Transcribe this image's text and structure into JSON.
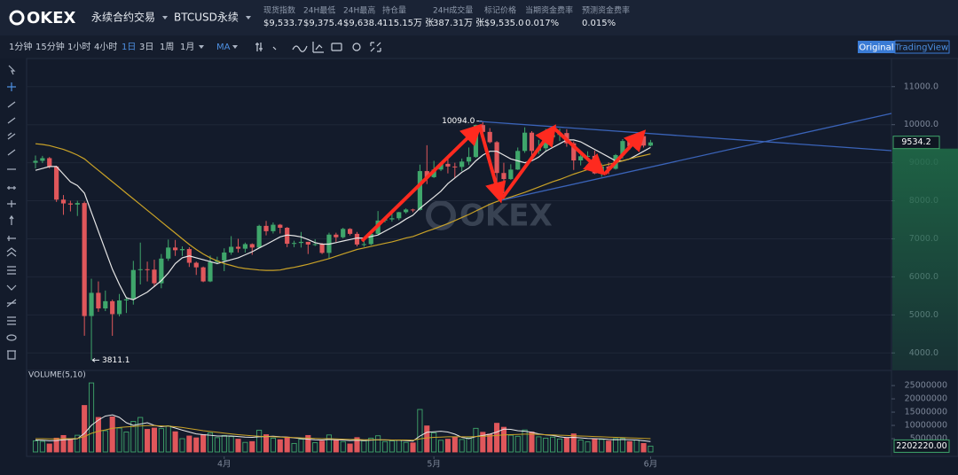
{
  "header": {
    "logo": "OKEX",
    "product": "永续合约交易",
    "instrument": "BTCUSD永续",
    "stats": [
      {
        "label": "现货指数",
        "value": "$9,533.7"
      },
      {
        "label": "24H最低",
        "value": "$9,375.4"
      },
      {
        "label": "24H最高",
        "value": "$9,638.4"
      },
      {
        "label": "持仓量",
        "value": "115.15万 张"
      },
      {
        "label": "24H成交量",
        "value": "387.31万 张"
      },
      {
        "label": "标记价格",
        "value": "$9,535.0"
      },
      {
        "label": "当期资金费率",
        "value": "0.017%"
      },
      {
        "label": "预测资金费率",
        "value": "0.015%"
      }
    ]
  },
  "toolbar": {
    "intervals": [
      "1分钟",
      "15分钟",
      "1小时",
      "4小时",
      "1日",
      "3日",
      "1周",
      "1月"
    ],
    "active_interval": 4,
    "indicator": "MA",
    "views": [
      "Original",
      "TradingView"
    ],
    "active_view": 0
  },
  "watermark": "OKEX",
  "chart_data": {
    "type": "candlestick",
    "categories": [
      null,
      null,
      null,
      null,
      null,
      null,
      null,
      null,
      null,
      null,
      null,
      null,
      null,
      null,
      null,
      null,
      null,
      null,
      null,
      null,
      null,
      null,
      null,
      null,
      null,
      null,
      null,
      "4月",
      null,
      null,
      null,
      null,
      null,
      null,
      null,
      null,
      null,
      null,
      null,
      null,
      null,
      null,
      null,
      null,
      null,
      null,
      null,
      null,
      null,
      null,
      null,
      null,
      null,
      null,
      null,
      null,
      null,
      "5月",
      null,
      null,
      null,
      null,
      null,
      null,
      null,
      null,
      null,
      null,
      null,
      null,
      null,
      null,
      null,
      null,
      null,
      null,
      null,
      null,
      null,
      null,
      null,
      null,
      null,
      null,
      null,
      null,
      null,
      null,
      "6月"
    ],
    "open": [
      9000,
      9050,
      9120,
      8900,
      8030,
      7930,
      7900,
      7940,
      4970,
      5580,
      5170,
      5360,
      5020,
      5380,
      5410,
      6180,
      6200,
      6190,
      5830,
      6480,
      6770,
      6700,
      6730,
      6370,
      6250,
      5880,
      6390,
      6430,
      6640,
      6790,
      6740,
      6860,
      6770,
      7340,
      7200,
      7370,
      7290,
      6870,
      6890,
      6920,
      6850,
      6860,
      6630,
      7110,
      7040,
      7260,
      7130,
      6850,
      6860,
      7130,
      7480,
      7510,
      7540,
      7700,
      7770,
      7760,
      8780,
      8620,
      8820,
      8970,
      8900,
      8890,
      9030,
      9150,
      9990,
      9810,
      9540,
      8730,
      8570,
      8820,
      9310,
      9790,
      9310,
      9380,
      9670,
      9730,
      9780,
      9510,
      9060,
      9170,
      9180,
      8720,
      8900,
      8840,
      9200,
      9570,
      9430,
      9700,
      9450
    ],
    "high": [
      9190,
      9180,
      9150,
      8920,
      8150,
      8000,
      8000,
      7980,
      5950,
      5880,
      5640,
      5400,
      5550,
      5470,
      6420,
      6900,
      6400,
      6450,
      6600,
      6980,
      6970,
      6800,
      6780,
      6400,
      6270,
      6560,
      6530,
      6750,
      7070,
      7000,
      6900,
      6880,
      7370,
      7470,
      7430,
      7390,
      7310,
      6950,
      7180,
      6920,
      6990,
      6890,
      7160,
      7160,
      7290,
      7280,
      7180,
      6940,
      7160,
      7730,
      7570,
      7710,
      7710,
      7800,
      7790,
      8950,
      9460,
      9050,
      9000,
      9190,
      9000,
      9110,
      9400,
      10000,
      10094,
      9910,
      9570,
      9000,
      8960,
      9400,
      9930,
      9830,
      9600,
      9890,
      9950,
      9900,
      9880,
      9560,
      9270,
      9300,
      9320,
      8980,
      9010,
      9230,
      9620,
      9610,
      9740,
      9710,
      9600
    ],
    "low": [
      8850,
      8990,
      8850,
      7970,
      7630,
      7720,
      7600,
      4450,
      3811.1,
      5080,
      5100,
      4450,
      4960,
      5050,
      5270,
      5800,
      5880,
      5730,
      5700,
      6420,
      6550,
      6550,
      6260,
      6050,
      5860,
      5860,
      6330,
      6150,
      6580,
      6640,
      6640,
      6580,
      6760,
      7090,
      7140,
      7140,
      6780,
      6780,
      6770,
      6600,
      6810,
      6600,
      6480,
      6920,
      7010,
      7090,
      6800,
      6790,
      6830,
      7110,
      7430,
      7450,
      7490,
      7660,
      7700,
      7740,
      8440,
      8600,
      8780,
      8720,
      8600,
      8780,
      8940,
      9130,
      9720,
      9510,
      8120,
      8200,
      8550,
      8810,
      9260,
      9150,
      9230,
      9280,
      9480,
      9570,
      9420,
      8810,
      8930,
      9080,
      8700,
      8630,
      8700,
      8820,
      9110,
      9340,
      9360,
      9400,
      9430
    ],
    "close": [
      9050,
      9120,
      8900,
      8030,
      7930,
      7900,
      7940,
      4970,
      5580,
      5170,
      5360,
      5020,
      5380,
      5410,
      6180,
      6200,
      6190,
      5830,
      6480,
      6770,
      6700,
      6730,
      6370,
      6250,
      5880,
      6390,
      6430,
      6640,
      6790,
      6740,
      6860,
      6770,
      7340,
      7200,
      7370,
      7290,
      6870,
      6890,
      6920,
      6850,
      6860,
      6630,
      7110,
      7040,
      7260,
      7130,
      6850,
      6860,
      7130,
      7480,
      7510,
      7540,
      7700,
      7770,
      7760,
      8780,
      8620,
      8820,
      8970,
      8900,
      8890,
      9030,
      9150,
      9990,
      9810,
      9540,
      8730,
      8570,
      8820,
      9310,
      9790,
      9310,
      9380,
      9670,
      9730,
      9780,
      9510,
      9060,
      9170,
      9180,
      8720,
      8900,
      8840,
      9200,
      9570,
      9430,
      9700,
      9450,
      9534.2
    ],
    "high_label": "10094.0",
    "up_color": "#3fa66b",
    "down_color": "#e0575b",
    "ma_lines": [
      {
        "color": "#e6e6e6",
        "values": [
          8800,
          8850,
          8900,
          8900,
          8700,
          8500,
          8400,
          8200,
          7700,
          7200,
          6700,
          6200,
          5800,
          5450,
          5400,
          5500,
          5600,
          5750,
          5900,
          6100,
          6350,
          6500,
          6550,
          6500,
          6450,
          6400,
          6350,
          6400,
          6450,
          6500,
          6580,
          6660,
          6760,
          6850,
          6950,
          7050,
          7100,
          7080,
          7050,
          6980,
          6900,
          6860,
          6860,
          6900,
          6940,
          6980,
          7020,
          7020,
          7060,
          7100,
          7200,
          7300,
          7400,
          7520,
          7620,
          7800,
          7950,
          8100,
          8250,
          8450,
          8600,
          8750,
          8860,
          9050,
          9200,
          9300,
          9300,
          9200,
          9100,
          9050,
          9000,
          9050,
          9150,
          9300,
          9400,
          9500,
          9600,
          9600,
          9550,
          9450,
          9350,
          9250,
          9150,
          9050,
          9050,
          9100,
          9200,
          9300,
          9400
        ]
      },
      {
        "color": "#c9a227",
        "values": [
          9500,
          9480,
          9450,
          9400,
          9350,
          9280,
          9200,
          9100,
          8950,
          8800,
          8650,
          8500,
          8350,
          8200,
          8050,
          7900,
          7750,
          7600,
          7450,
          7300,
          7150,
          7000,
          6850,
          6720,
          6600,
          6500,
          6420,
          6350,
          6300,
          6250,
          6220,
          6200,
          6180,
          6170,
          6170,
          6180,
          6220,
          6250,
          6290,
          6330,
          6380,
          6430,
          6480,
          6540,
          6600,
          6660,
          6720,
          6760,
          6800,
          6840,
          6880,
          6920,
          6970,
          7020,
          7060,
          7130,
          7200,
          7260,
          7330,
          7400,
          7480,
          7560,
          7640,
          7730,
          7820,
          7910,
          7980,
          8040,
          8100,
          8160,
          8220,
          8290,
          8360,
          8430,
          8500,
          8560,
          8630,
          8700,
          8760,
          8820,
          8870,
          8920,
          8960,
          9000,
          9050,
          9100,
          9150,
          9190,
          9230
        ]
      }
    ],
    "ylim": [
      3540,
      11740
    ],
    "yticks": [
      {
        "value": 4000,
        "label": "4000.0"
      },
      {
        "value": 5000,
        "label": "5000.0"
      },
      {
        "value": 6000,
        "label": "6000.0"
      },
      {
        "value": 7000,
        "label": "7000.0"
      },
      {
        "value": 8000,
        "label": "8000.0"
      },
      {
        "value": 9000,
        "label": "9000.0"
      },
      {
        "value": 10000,
        "label": "10000.0"
      },
      {
        "value": 11000,
        "label": "11000.0"
      }
    ],
    "grid": true,
    "volume": {
      "title": "VOLUME(5,10)",
      "values": [
        4200000,
        4000000,
        3000000,
        5200000,
        6200000,
        4800000,
        6300000,
        17500000,
        26000000,
        13000000,
        8000000,
        13200000,
        9000000,
        7500000,
        11500000,
        13000000,
        8500000,
        9000000,
        8800000,
        9800000,
        7600000,
        5000000,
        6000000,
        5300000,
        6500000,
        7200000,
        5400000,
        6200000,
        5800000,
        4800000,
        3600000,
        3900000,
        8200000,
        6500000,
        5200000,
        4600000,
        5600000,
        3200000,
        4800000,
        6200000,
        3500000,
        4100000,
        6400000,
        4300000,
        3900000,
        3000000,
        5400000,
        4200000,
        5200000,
        6100000,
        3900000,
        4200000,
        4500000,
        3600000,
        3400000,
        16000000,
        9800000,
        7200000,
        4400000,
        4800000,
        5600000,
        4700000,
        5300000,
        8900000,
        7400000,
        6700000,
        10800000,
        9300000,
        6300000,
        5900000,
        8300000,
        7500000,
        5700000,
        5200000,
        5600000,
        4900000,
        5400000,
        6800000,
        4500000,
        3800000,
        4700000,
        4700000,
        4100000,
        5000000,
        5100000,
        3900000,
        4500000,
        3200000,
        2202220
      ],
      "last_label": "2202220.00",
      "ma_lines": [
        {
          "color": "#e6e6e6",
          "values": [
            4500000,
            4400000,
            4200000,
            4300000,
            4600000,
            4700000,
            5000000,
            7000000,
            10000000,
            12000000,
            13500000,
            14000000,
            13000000,
            11000000,
            10000000,
            10500000,
            11000000,
            10000000,
            9500000,
            9800000,
            9000000,
            8200000,
            7500000,
            6800000,
            6500000,
            6300000,
            6000000,
            6000000,
            6000000,
            5800000,
            5600000,
            5500000,
            5700000,
            5800000,
            5900000,
            5700000,
            5600000,
            5300000,
            5000000,
            4800000,
            4600000,
            4500000,
            4700000,
            4600000,
            4500000,
            4300000,
            4400000,
            4300000,
            4400000,
            4600000,
            4500000,
            4400000,
            4400000,
            4300000,
            4100000,
            6000000,
            7400000,
            7600000,
            7800000,
            7500000,
            6700000,
            5500000,
            5000000,
            5800000,
            6200000,
            6700000,
            7500000,
            8600000,
            8500000,
            8000000,
            7800000,
            7400000,
            6800000,
            6400000,
            6200000,
            5700000,
            5400000,
            5500000,
            5300000,
            5100000,
            5000000,
            4900000,
            4700000,
            4600000,
            4700000,
            4600000,
            4500000,
            4200000,
            3900000
          ]
        },
        {
          "color": "#c9a227",
          "values": [
            5000000,
            5000000,
            4900000,
            4900000,
            5000000,
            5000000,
            5100000,
            5800000,
            7000000,
            7800000,
            8300000,
            8900000,
            9200000,
            9400000,
            9600000,
            9800000,
            9900000,
            9900000,
            9800000,
            9700000,
            9500000,
            9200000,
            8800000,
            8400000,
            8000000,
            7700000,
            7400000,
            7100000,
            6800000,
            6500000,
            6300000,
            6100000,
            5900000,
            5800000,
            5700000,
            5600000,
            5500000,
            5400000,
            5300000,
            5200000,
            5100000,
            5000000,
            5000000,
            4900000,
            4800000,
            4700000,
            4700000,
            4600000,
            4600000,
            4600000,
            4600000,
            4500000,
            4500000,
            4500000,
            4400000,
            4900000,
            5300000,
            5500000,
            5600000,
            5700000,
            5700000,
            5700000,
            5700000,
            5800000,
            5900000,
            6000000,
            6200000,
            6400000,
            6500000,
            6600000,
            6700000,
            6700000,
            6600000,
            6500000,
            6400000,
            6300000,
            6200000,
            6100000,
            6000000,
            5900000,
            5800000,
            5700000,
            5600000,
            5500000,
            5400000,
            5300000,
            5200000,
            5100000,
            5000000
          ]
        }
      ],
      "ylim": [
        0,
        27700000
      ],
      "yticks": [
        5000000,
        10000000,
        15000000,
        20000000,
        25000000
      ]
    }
  }
}
